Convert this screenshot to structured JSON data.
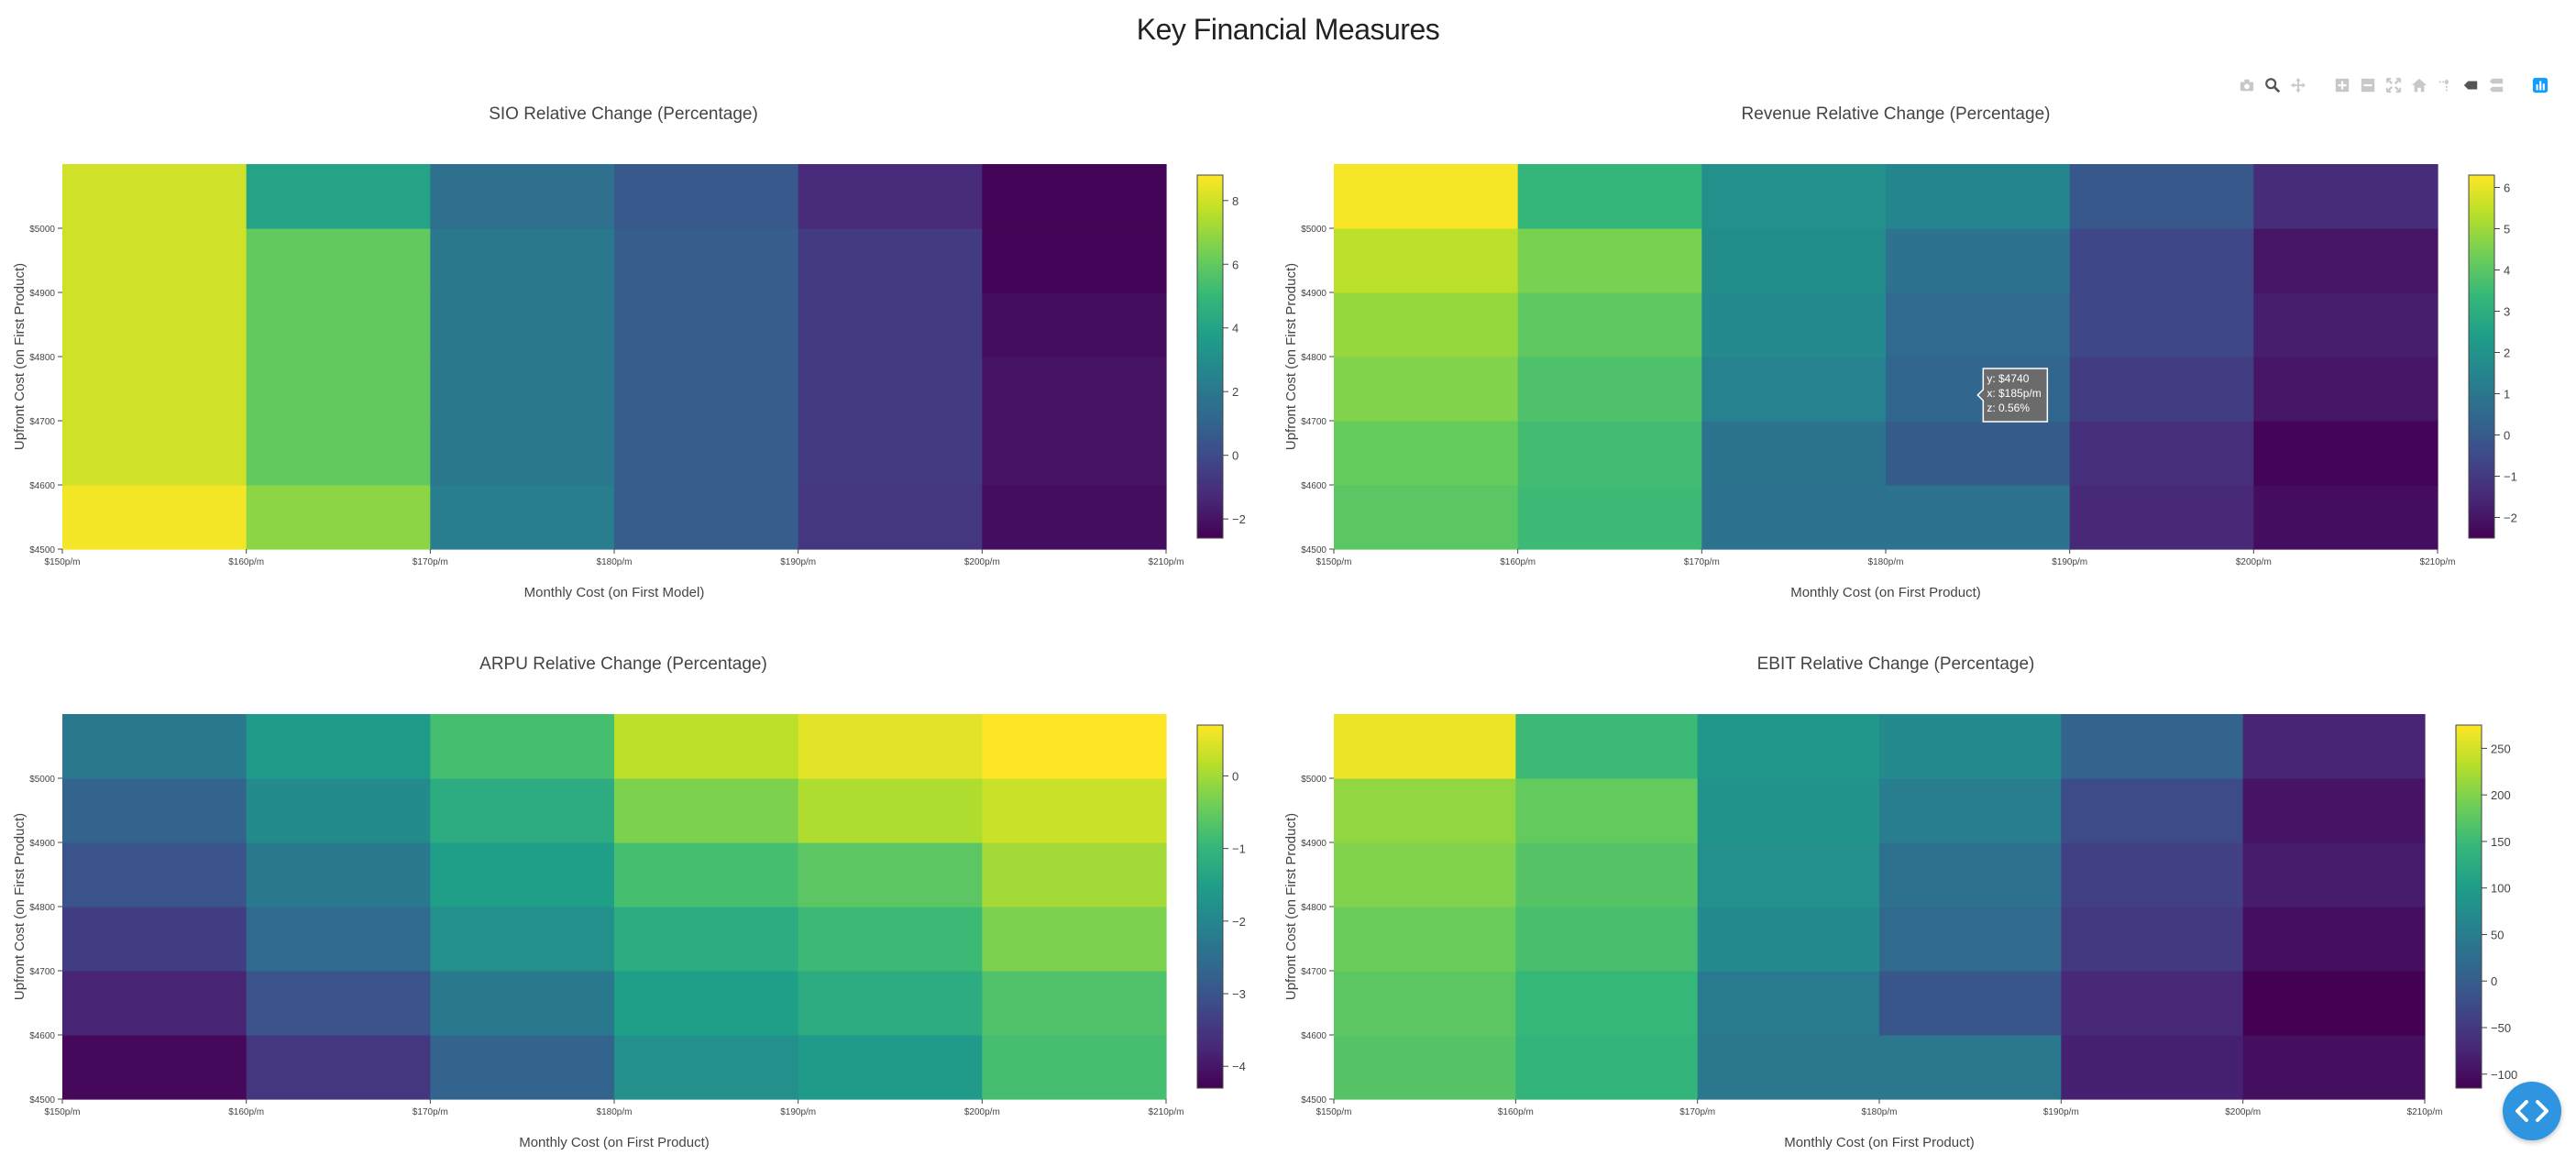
{
  "page": {
    "title": "Key Financial Measures"
  },
  "modebar": {
    "icons": [
      "camera-icon",
      "zoom-icon",
      "pan-icon",
      "zoom-in-icon",
      "zoom-out-icon",
      "autoscale-icon",
      "home-icon",
      "spike-lines-icon",
      "hover-closest-icon",
      "hover-compare-icon",
      "plotly-logo-icon"
    ]
  },
  "fab": {
    "icon": "code-brackets-icon",
    "color": "#2f95e0"
  },
  "colorscale": [
    "#440154",
    "#482878",
    "#3e4989",
    "#31688e",
    "#26828e",
    "#1f9e89",
    "#35b779",
    "#6ece58",
    "#b5de2b",
    "#fde725"
  ],
  "tooltip": {
    "y": "y: $4740",
    "x": "x: $185p/m",
    "z": "z: 0.56%"
  },
  "chart_data": [
    {
      "type": "heatmap",
      "title": "SIO Relative Change (Percentage)",
      "xlabel": "Monthly Cost (on First Model)",
      "ylabel": "Upfront Cost (on First Product)",
      "x_ticks": [
        "$150p/m",
        "$160p/m",
        "$170p/m",
        "$180p/m",
        "$190p/m",
        "$200p/m",
        "$210p/m"
      ],
      "y_ticks": [
        "$4500",
        "$4600",
        "$4700",
        "$4800",
        "$4900",
        "$5000"
      ],
      "zrange": [
        -2.6,
        8.8
      ],
      "colorbar_ticks": [
        -2,
        0,
        2,
        4,
        6,
        8
      ],
      "z": [
        [
          8.6,
          6.8,
          2.2,
          0.8,
          -0.8,
          -2.2
        ],
        [
          8.0,
          6.0,
          2.0,
          0.8,
          -0.6,
          -2.0
        ],
        [
          8.0,
          6.0,
          2.0,
          0.8,
          -0.6,
          -2.0
        ],
        [
          8.0,
          6.0,
          2.0,
          0.8,
          -0.6,
          -2.2
        ],
        [
          8.0,
          6.0,
          2.0,
          0.8,
          -0.6,
          -2.5
        ],
        [
          8.0,
          4.0,
          1.6,
          0.6,
          -1.2,
          -2.5
        ]
      ]
    },
    {
      "type": "heatmap",
      "title": "Revenue Relative Change (Percentage)",
      "xlabel": "Monthly Cost (on First Product)",
      "ylabel": "Upfront Cost (on First Product)",
      "x_ticks": [
        "$150p/m",
        "$160p/m",
        "$170p/m",
        "$180p/m",
        "$190p/m",
        "$200p/m",
        "$210p/m"
      ],
      "y_ticks": [
        "$4500",
        "$4600",
        "$4700",
        "$4800",
        "$4900",
        "$5000"
      ],
      "zrange": [
        -2.5,
        6.3
      ],
      "colorbar_ticks": [
        -2,
        -1,
        0,
        1,
        2,
        3,
        4,
        5,
        6
      ],
      "z": [
        [
          4.0,
          3.5,
          0.8,
          0.8,
          -1.5,
          -2.2
        ],
        [
          4.2,
          3.6,
          0.9,
          0.1,
          -1.3,
          -2.4
        ],
        [
          4.6,
          3.8,
          1.4,
          0.4,
          -0.9,
          -2.0
        ],
        [
          4.9,
          4.1,
          1.7,
          0.5,
          -0.6,
          -1.8
        ],
        [
          5.4,
          4.5,
          1.8,
          0.8,
          -0.6,
          -2.0
        ],
        [
          6.2,
          3.3,
          1.9,
          1.5,
          -0.1,
          -1.4
        ]
      ]
    },
    {
      "type": "heatmap",
      "title": "ARPU Relative Change (Percentage)",
      "xlabel": "Monthly Cost (on First Product)",
      "ylabel": "Upfront Cost (on First Product)",
      "x_ticks": [
        "$150p/m",
        "$160p/m",
        "$170p/m",
        "$180p/m",
        "$190p/m",
        "$200p/m",
        "$210p/m"
      ],
      "y_ticks": [
        "$4500",
        "$4600",
        "$4700",
        "$4800",
        "$4900",
        "$5000"
      ],
      "zrange": [
        -4.3,
        0.7
      ],
      "colorbar_ticks": [
        -4,
        -3,
        -2,
        -1,
        0
      ],
      "z": [
        [
          -4.2,
          -3.5,
          -2.7,
          -1.8,
          -1.6,
          -0.8
        ],
        [
          -3.8,
          -3.0,
          -2.3,
          -1.5,
          -1.2,
          -0.7
        ],
        [
          -3.4,
          -2.6,
          -1.8,
          -1.2,
          -0.9,
          -0.3
        ],
        [
          -3.0,
          -2.3,
          -1.5,
          -0.8,
          -0.6,
          0.0
        ],
        [
          -2.7,
          -1.9,
          -1.2,
          -0.3,
          0.1,
          0.3
        ],
        [
          -2.3,
          -1.6,
          -0.8,
          0.2,
          0.5,
          0.7
        ]
      ]
    },
    {
      "type": "heatmap",
      "title": "EBIT Relative Change (Percentage)",
      "xlabel": "Monthly Cost (on First Product)",
      "ylabel": "Upfront Cost (on First Product)",
      "x_ticks": [
        "$150p/m",
        "$160p/m",
        "$170p/m",
        "$180p/m",
        "$190p/m",
        "$200p/m",
        "$210p/m"
      ],
      "y_ticks": [
        "$4500",
        "$4600",
        "$4700",
        "$4800",
        "$4900",
        "$5000"
      ],
      "zrange": [
        -115,
        275
      ],
      "colorbar_ticks": [
        -100,
        -50,
        0,
        50,
        100,
        150,
        200,
        250
      ],
      "z": [
        [
          170,
          140,
          40,
          40,
          -80,
          -100
        ],
        [
          175,
          145,
          45,
          -10,
          -70,
          -115
        ],
        [
          185,
          160,
          70,
          20,
          -50,
          -100
        ],
        [
          200,
          170,
          80,
          30,
          -40,
          -85
        ],
        [
          210,
          180,
          85,
          50,
          -25,
          -95
        ],
        [
          265,
          150,
          90,
          70,
          10,
          -75
        ]
      ]
    }
  ]
}
